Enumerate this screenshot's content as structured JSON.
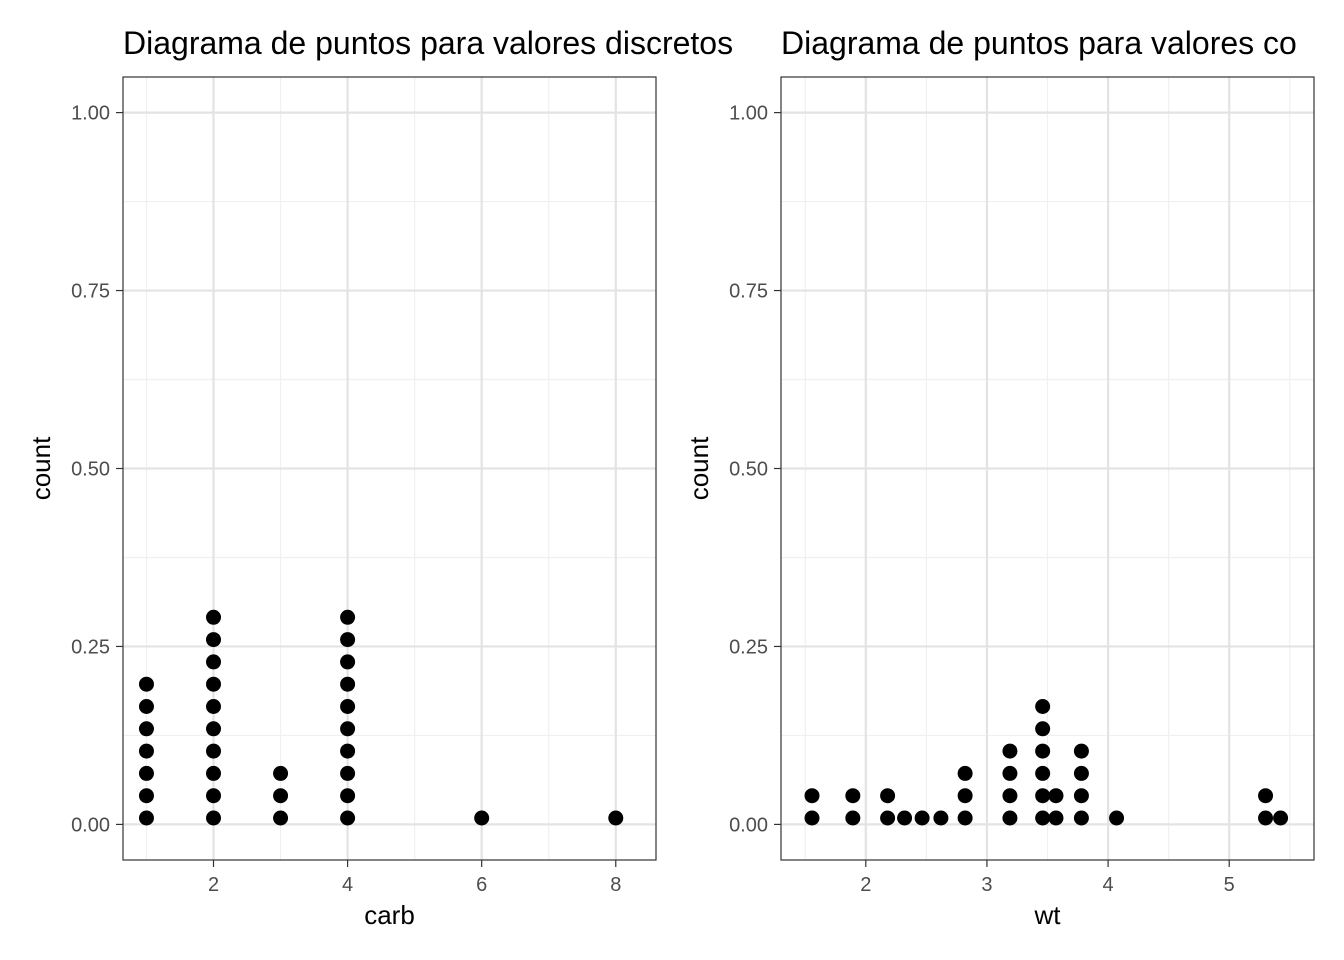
{
  "chart_data": [
    {
      "type": "dotplot",
      "title": "Diagrama de puntos para valores discretos",
      "xlabel": "carb",
      "ylabel": "count",
      "xlim": [
        0.65,
        8.6
      ],
      "ylim": [
        -0.05,
        1.05
      ],
      "x_ticks": [
        2,
        4,
        6,
        8
      ],
      "x_tick_labels": [
        "2",
        "4",
        "6",
        "8"
      ],
      "y_ticks": [
        0,
        0.25,
        0.5,
        0.75,
        1
      ],
      "y_tick_labels": [
        "0.00",
        "0.25",
        "0.50",
        "0.75",
        "1.00"
      ],
      "grid": true,
      "stacks": [
        {
          "x": 1,
          "count": 7
        },
        {
          "x": 2,
          "count": 10
        },
        {
          "x": 3,
          "count": 3
        },
        {
          "x": 4,
          "count": 10
        },
        {
          "x": 6,
          "count": 1
        },
        {
          "x": 8,
          "count": 1
        }
      ]
    },
    {
      "type": "dotplot",
      "title": "Diagrama de puntos para valores co",
      "xlabel": "wt",
      "ylabel": "count",
      "xlim": [
        1.3,
        5.7
      ],
      "ylim": [
        -0.05,
        1.05
      ],
      "x_ticks": [
        2,
        3,
        4,
        5
      ],
      "x_tick_labels": [
        "2",
        "3",
        "4",
        "5"
      ],
      "y_ticks": [
        0,
        0.25,
        0.5,
        0.75,
        1
      ],
      "y_tick_labels": [
        "0.00",
        "0.25",
        "0.50",
        "0.75",
        "1.00"
      ],
      "grid": true,
      "stacks": [
        {
          "x": 1.556,
          "count": 2
        },
        {
          "x": 1.893,
          "count": 2
        },
        {
          "x": 2.18,
          "count": 2
        },
        {
          "x": 2.32,
          "count": 1
        },
        {
          "x": 2.465,
          "count": 1
        },
        {
          "x": 2.62,
          "count": 1
        },
        {
          "x": 2.82,
          "count": 3
        },
        {
          "x": 3.19,
          "count": 4
        },
        {
          "x": 3.46,
          "count": 6
        },
        {
          "x": 3.57,
          "count": 2
        },
        {
          "x": 3.78,
          "count": 4
        },
        {
          "x": 4.07,
          "count": 1
        },
        {
          "x": 5.3,
          "count": 2
        },
        {
          "x": 5.424,
          "count": 1
        }
      ]
    }
  ]
}
